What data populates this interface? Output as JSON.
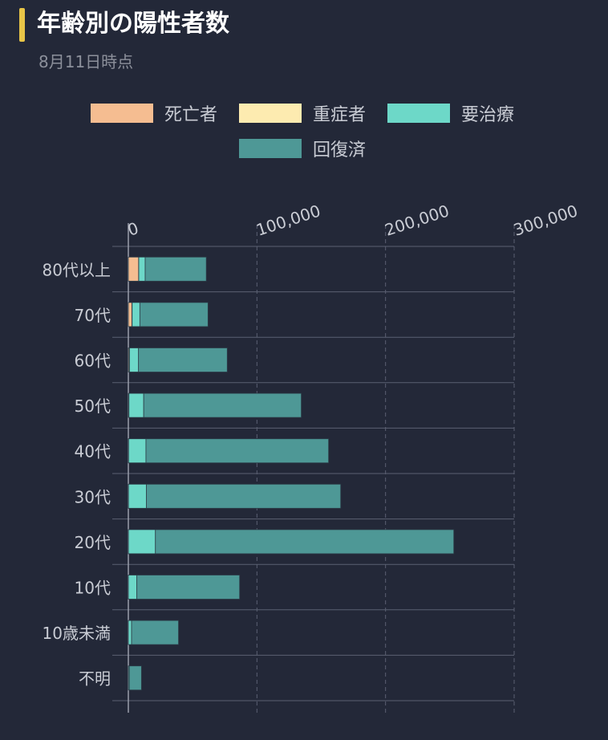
{
  "header": {
    "title": "年齢別の陽性者数",
    "subtitle": "8月11日時点"
  },
  "colors": {
    "death": "#f5bd91",
    "severe": "#fdebb0",
    "treatment": "#6dd8c8",
    "recovered": "#4e9896",
    "grid": "#5b6072",
    "axis": "#9a9eab",
    "tick": "#c9ccd4"
  },
  "chart_data": {
    "type": "bar",
    "orientation": "horizontal",
    "stacked": true,
    "title": "年齢別の陽性者数",
    "subtitle": "8月11日時点",
    "categories": [
      "80代以上",
      "70代",
      "60代",
      "50代",
      "40代",
      "30代",
      "20代",
      "10代",
      "10歳未満",
      "不明"
    ],
    "series": [
      {
        "name": "死亡者",
        "key": "death",
        "values": [
          8000,
          2800,
          700,
          300,
          100,
          50,
          30,
          5,
          2,
          0
        ]
      },
      {
        "name": "重症者",
        "key": "severe",
        "values": [
          100,
          150,
          200,
          150,
          100,
          50,
          20,
          5,
          2,
          0
        ]
      },
      {
        "name": "要治療",
        "key": "treatment",
        "values": [
          5000,
          6000,
          7000,
          11500,
          13500,
          14000,
          21000,
          6500,
          2500,
          700
        ]
      },
      {
        "name": "回復済",
        "key": "recovered",
        "values": [
          47500,
          53000,
          69000,
          122500,
          142000,
          151000,
          232000,
          80000,
          36500,
          9500
        ]
      }
    ],
    "xlim": [
      0,
      300000
    ],
    "xticks": [
      "0",
      "100,000",
      "200,000",
      "300,000"
    ],
    "xtick_values": [
      0,
      100000,
      200000,
      300000
    ],
    "grid": true,
    "legend_position": "top"
  }
}
